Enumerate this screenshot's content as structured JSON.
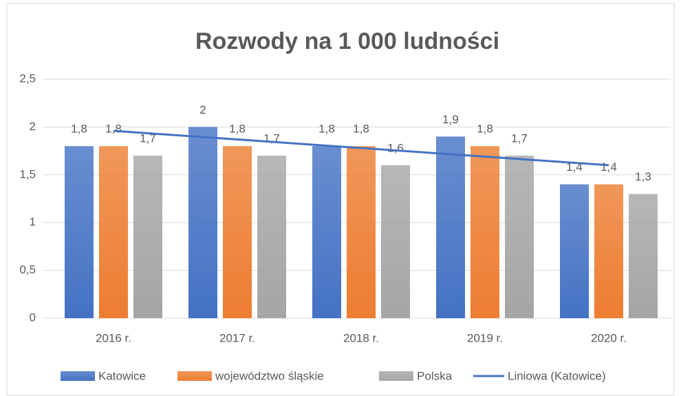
{
  "chart_data": {
    "type": "bar",
    "title": "Rozwody na 1 000 ludności",
    "categories": [
      "2016 r.",
      "2017 r.",
      "2018 r.",
      "2019 r.",
      "2020 r."
    ],
    "series": [
      {
        "name": "Katowice",
        "color": "#4472c4",
        "values": [
          1.8,
          2,
          1.8,
          1.9,
          1.4
        ],
        "value_labels": [
          "1,8",
          "2",
          "1,8",
          "1,9",
          "1,4"
        ]
      },
      {
        "name": "województwo śląskie",
        "color": "#ed7d31",
        "values": [
          1.8,
          1.8,
          1.8,
          1.8,
          1.4
        ],
        "value_labels": [
          "1,8",
          "1,8",
          "1,8",
          "1,8",
          "1,4"
        ]
      },
      {
        "name": "Polska",
        "color": "#a5a5a5",
        "values": [
          1.7,
          1.7,
          1.6,
          1.7,
          1.3
        ],
        "value_labels": [
          "1,7",
          "1,7",
          "1,6",
          "1,7",
          "1,3"
        ]
      }
    ],
    "trendline": {
      "name": "Liniowa (Katowice)",
      "color": "#4472c4",
      "values": [
        1.96,
        1.87,
        1.78,
        1.69,
        1.6
      ]
    },
    "ylim": [
      0,
      2.5
    ],
    "yticks": [
      0,
      {
        "value": 0.5,
        "label": "0,5"
      },
      1,
      {
        "value": 1.5,
        "label": "1,5"
      },
      2,
      {
        "value": 2.5,
        "label": "2,5"
      }
    ],
    "grid": true,
    "legend": "bottom"
  }
}
